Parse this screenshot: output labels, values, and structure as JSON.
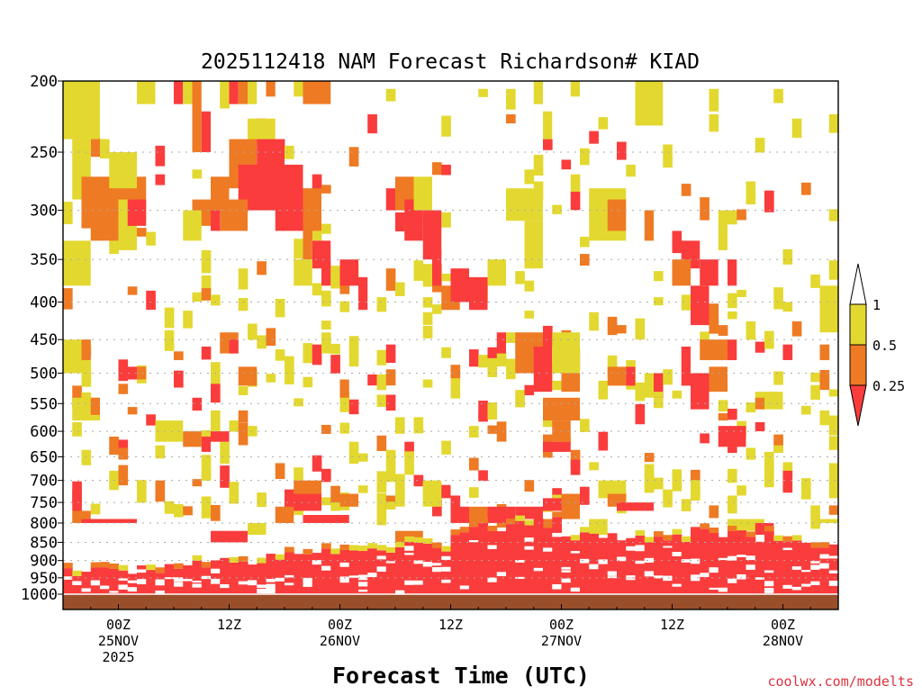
{
  "chart_data": {
    "type": "heatmap",
    "title": "2025112418 NAM Forecast Richardson# KIAD",
    "xlabel": "Forecast Time (UTC)",
    "ylabel": "",
    "credit": "coolwx.com/modelts",
    "x_range_hours": [
      -6,
      78
    ],
    "y_range_hpa": [
      200,
      1000
    ],
    "y_ticks": [
      {
        "p": 200,
        "label": "200"
      },
      {
        "p": 250,
        "label": "250"
      },
      {
        "p": 300,
        "label": "300"
      },
      {
        "p": 350,
        "label": "350"
      },
      {
        "p": 400,
        "label": "400"
      },
      {
        "p": 450,
        "label": "450"
      },
      {
        "p": 500,
        "label": "500"
      },
      {
        "p": 550,
        "label": "550"
      },
      {
        "p": 600,
        "label": "600"
      },
      {
        "p": 650,
        "label": "650"
      },
      {
        "p": 700,
        "label": "700"
      },
      {
        "p": 750,
        "label": "750"
      },
      {
        "p": 800,
        "label": "800"
      },
      {
        "p": 850,
        "label": "850"
      },
      {
        "p": 900,
        "label": "900"
      },
      {
        "p": 950,
        "label": "950"
      },
      {
        "p": 1000,
        "label": "1000"
      }
    ],
    "x_ticks": [
      {
        "h": 0,
        "lines": [
          "00Z",
          "25NOV",
          "2025"
        ]
      },
      {
        "h": 12,
        "lines": [
          "12Z"
        ]
      },
      {
        "h": 24,
        "lines": [
          "00Z",
          "26NOV"
        ]
      },
      {
        "h": 36,
        "lines": [
          "12Z"
        ]
      },
      {
        "h": 48,
        "lines": [
          "00Z",
          "27NOV"
        ]
      },
      {
        "h": 60,
        "lines": [
          "12Z"
        ]
      },
      {
        "h": 72,
        "lines": [
          "00Z",
          "28NOV"
        ]
      }
    ],
    "legend": {
      "position": "right",
      "levels": [
        {
          "label": "1",
          "color": "#ffffff"
        },
        {
          "label": "0.5",
          "color": "#e3d830"
        },
        {
          "label": "0.25",
          "color": "#ee7a24"
        },
        {
          "label": "",
          "color": "#fa3c3c"
        }
      ],
      "ticks": [
        "1",
        "0.5",
        "0.25"
      ]
    },
    "colors": {
      "low": "#fa3c3c",
      "mid": "#ee7a24",
      "high": "#e3d830",
      "ground": "#9a4f2b",
      "grid": "#aaaaaa"
    },
    "bins": [
      {
        "range": "< 0.25",
        "color": "#fa3c3c"
      },
      {
        "range": "0.25 - 0.5",
        "color": "#ee7a24"
      },
      {
        "range": "0.5 - 1",
        "color": "#e3d830"
      }
    ],
    "blobs": [
      {
        "h0": -6,
        "h1": -3,
        "p0": 330,
        "p1": 380,
        "c": 2
      },
      {
        "h0": -5,
        "h1": -3,
        "p0": 240,
        "p1": 290,
        "c": 2
      },
      {
        "h0": -4,
        "h1": 3,
        "p0": 270,
        "p1": 310,
        "c": 1
      },
      {
        "h0": -1,
        "h1": 2,
        "p0": 250,
        "p1": 280,
        "c": 2
      },
      {
        "h0": 0,
        "h1": 2,
        "p0": 290,
        "p1": 340,
        "c": 2
      },
      {
        "h0": 1,
        "h1": 3,
        "p0": 290,
        "p1": 315,
        "c": 0
      },
      {
        "h0": -3,
        "h1": 0,
        "p0": 300,
        "p1": 330,
        "c": 1
      },
      {
        "h0": -6,
        "h1": -2,
        "p0": 200,
        "p1": 240,
        "c": 2
      },
      {
        "h0": 2,
        "h1": 4,
        "p0": 200,
        "p1": 215,
        "c": 2
      },
      {
        "h0": 6,
        "h1": 7,
        "p0": 200,
        "p1": 215,
        "c": 0
      },
      {
        "h0": 7,
        "h1": 8,
        "p0": 200,
        "p1": 215,
        "c": 2
      },
      {
        "h0": 8,
        "h1": 9,
        "p0": 200,
        "p1": 250,
        "c": 1
      },
      {
        "h0": 9,
        "h1": 10,
        "p0": 220,
        "p1": 250,
        "c": 0
      },
      {
        "h0": 11,
        "h1": 12,
        "p0": 200,
        "p1": 215,
        "c": 2
      },
      {
        "h0": 12,
        "h1": 13,
        "p0": 200,
        "p1": 215,
        "c": 0
      },
      {
        "h0": 13,
        "h1": 14,
        "p0": 200,
        "p1": 215,
        "c": 1
      },
      {
        "h0": 14,
        "h1": 15,
        "p0": 200,
        "p1": 215,
        "c": 2
      },
      {
        "h0": 16,
        "h1": 17,
        "p0": 200,
        "p1": 210,
        "c": 1
      },
      {
        "h0": 19,
        "h1": 20,
        "p0": 200,
        "p1": 210,
        "c": 2
      },
      {
        "h0": 20,
        "h1": 23,
        "p0": 200,
        "p1": 215,
        "c": 1
      },
      {
        "h0": 14,
        "h1": 17,
        "p0": 225,
        "p1": 245,
        "c": 2
      },
      {
        "h0": 12,
        "h1": 15,
        "p0": 240,
        "p1": 280,
        "c": 1
      },
      {
        "h0": 13,
        "h1": 20,
        "p0": 260,
        "p1": 300,
        "c": 0
      },
      {
        "h0": 15,
        "h1": 18,
        "p0": 240,
        "p1": 265,
        "c": 0
      },
      {
        "h0": 17,
        "h1": 20,
        "p0": 290,
        "p1": 320,
        "c": 0
      },
      {
        "h0": 20,
        "h1": 22,
        "p0": 280,
        "p1": 320,
        "c": 1
      },
      {
        "h0": 10,
        "h1": 12,
        "p0": 270,
        "p1": 300,
        "c": 1
      },
      {
        "h0": 11,
        "h1": 14,
        "p0": 290,
        "p1": 320,
        "c": 1
      },
      {
        "h0": 10,
        "h1": 11,
        "p0": 300,
        "p1": 320,
        "c": 0
      },
      {
        "h0": 8,
        "h1": 10,
        "p0": 290,
        "p1": 315,
        "c": 1
      },
      {
        "h0": 7,
        "h1": 9,
        "p0": 300,
        "p1": 330,
        "c": 2
      },
      {
        "h0": 21,
        "h1": 23,
        "p0": 330,
        "p1": 360,
        "c": 0
      },
      {
        "h0": 20,
        "h1": 21,
        "p0": 320,
        "p1": 350,
        "c": 1
      },
      {
        "h0": 22,
        "h1": 23,
        "p0": 350,
        "p1": 380,
        "c": 0
      },
      {
        "h0": 19,
        "h1": 21,
        "p0": 350,
        "p1": 380,
        "c": 2
      },
      {
        "h0": 24,
        "h1": 26,
        "p0": 350,
        "p1": 380,
        "c": 0
      },
      {
        "h0": 26,
        "h1": 27,
        "p0": 370,
        "p1": 410,
        "c": 0
      },
      {
        "h0": 29,
        "h1": 30,
        "p0": 280,
        "p1": 300,
        "c": 0
      },
      {
        "h0": 30,
        "h1": 32,
        "p0": 270,
        "p1": 300,
        "c": 1
      },
      {
        "h0": 31,
        "h1": 33,
        "p0": 290,
        "p1": 330,
        "c": 0
      },
      {
        "h0": 32,
        "h1": 34,
        "p0": 270,
        "p1": 300,
        "c": 2
      },
      {
        "h0": 33,
        "h1": 35,
        "p0": 300,
        "p1": 350,
        "c": 0
      },
      {
        "h0": 34,
        "h1": 35,
        "p0": 340,
        "p1": 380,
        "c": 0
      },
      {
        "h0": 35,
        "h1": 37,
        "p0": 380,
        "p1": 410,
        "c": 1
      },
      {
        "h0": 36,
        "h1": 38,
        "p0": 360,
        "p1": 400,
        "c": 0
      },
      {
        "h0": 38,
        "h1": 40,
        "p0": 370,
        "p1": 410,
        "c": 0
      },
      {
        "h0": 40,
        "h1": 42,
        "p0": 350,
        "p1": 380,
        "c": 2
      },
      {
        "h0": 42,
        "h1": 46,
        "p0": 280,
        "p1": 310,
        "c": 2
      },
      {
        "h0": 44,
        "h1": 46,
        "p0": 310,
        "p1": 360,
        "c": 2
      },
      {
        "h0": 46,
        "h1": 47,
        "p0": 220,
        "p1": 240,
        "c": 2
      },
      {
        "h0": 45,
        "h1": 46,
        "p0": 200,
        "p1": 215,
        "c": 2
      },
      {
        "h0": 49,
        "h1": 50,
        "p0": 200,
        "p1": 210,
        "c": 2
      },
      {
        "h0": 51,
        "h1": 55,
        "p0": 280,
        "p1": 330,
        "c": 2
      },
      {
        "h0": 53,
        "h1": 55,
        "p0": 290,
        "p1": 320,
        "c": 1
      },
      {
        "h0": 57,
        "h1": 58,
        "p0": 300,
        "p1": 330,
        "c": 1
      },
      {
        "h0": 56,
        "h1": 59,
        "p0": 200,
        "p1": 230,
        "c": 2
      },
      {
        "h0": 61,
        "h1": 63,
        "p0": 330,
        "p1": 360,
        "c": 0
      },
      {
        "h0": 60,
        "h1": 62,
        "p0": 350,
        "p1": 380,
        "c": 1
      },
      {
        "h0": 63,
        "h1": 65,
        "p0": 350,
        "p1": 380,
        "c": 0
      },
      {
        "h0": 65,
        "h1": 66,
        "p0": 300,
        "p1": 340,
        "c": 2
      },
      {
        "h0": 66,
        "h1": 67,
        "p0": 350,
        "p1": 380,
        "c": 0
      },
      {
        "h0": 62,
        "h1": 64,
        "p0": 380,
        "p1": 430,
        "c": 0
      },
      {
        "h0": 76,
        "h1": 80,
        "p0": 380,
        "p1": 440,
        "c": 2
      },
      {
        "h0": -6,
        "h1": -3,
        "p0": 450,
        "p1": 500,
        "c": 2
      },
      {
        "h0": -4,
        "h1": -3,
        "p0": 450,
        "p1": 480,
        "c": 1
      },
      {
        "h0": -5,
        "h1": -2,
        "p0": 540,
        "p1": 580,
        "c": 2
      },
      {
        "h0": -3,
        "h1": -2,
        "p0": 540,
        "p1": 570,
        "c": 1
      },
      {
        "h0": 1,
        "h1": 2,
        "p0": 490,
        "p1": 510,
        "c": 0
      },
      {
        "h0": 2,
        "h1": 3,
        "p0": 490,
        "p1": 510,
        "c": 1
      },
      {
        "h0": 4,
        "h1": 7,
        "p0": 580,
        "p1": 620,
        "c": 2
      },
      {
        "h0": 7,
        "h1": 9,
        "p0": 600,
        "p1": 630,
        "c": 1
      },
      {
        "h0": 9,
        "h1": 10,
        "p0": 610,
        "p1": 640,
        "c": 0
      },
      {
        "h0": 11,
        "h1": 13,
        "p0": 440,
        "p1": 470,
        "c": 1
      },
      {
        "h0": 12,
        "h1": 13,
        "p0": 450,
        "p1": 470,
        "c": 0
      },
      {
        "h0": 13,
        "h1": 15,
        "p0": 490,
        "p1": 520,
        "c": 1
      },
      {
        "h0": 10,
        "h1": 12,
        "p0": 600,
        "p1": 620,
        "c": 0
      },
      {
        "h0": 24,
        "h1": 25,
        "p0": 510,
        "p1": 540,
        "c": 1
      },
      {
        "h0": 30,
        "h1": 31,
        "p0": 580,
        "p1": 600,
        "c": 2
      },
      {
        "h0": 41,
        "h1": 42,
        "p0": 440,
        "p1": 470,
        "c": 0
      },
      {
        "h0": 43,
        "h1": 46,
        "p0": 440,
        "p1": 500,
        "c": 1
      },
      {
        "h0": 45,
        "h1": 47,
        "p0": 460,
        "p1": 530,
        "c": 0
      },
      {
        "h0": 47,
        "h1": 50,
        "p0": 440,
        "p1": 500,
        "c": 2
      },
      {
        "h0": 48,
        "h1": 50,
        "p0": 500,
        "p1": 530,
        "c": 1
      },
      {
        "h0": 46,
        "h1": 50,
        "p0": 540,
        "p1": 580,
        "c": 1
      },
      {
        "h0": 47,
        "h1": 49,
        "p0": 580,
        "p1": 620,
        "c": 1
      },
      {
        "h0": 46,
        "h1": 49,
        "p0": 620,
        "p1": 640,
        "c": 0
      },
      {
        "h0": 53,
        "h1": 55,
        "p0": 490,
        "p1": 520,
        "c": 1
      },
      {
        "h0": 55,
        "h1": 56,
        "p0": 490,
        "p1": 520,
        "c": 0
      },
      {
        "h0": 57,
        "h1": 59,
        "p0": 500,
        "p1": 540,
        "c": 2
      },
      {
        "h0": 58,
        "h1": 59,
        "p0": 500,
        "p1": 530,
        "c": 0
      },
      {
        "h0": 61,
        "h1": 62,
        "p0": 460,
        "p1": 520,
        "c": 0
      },
      {
        "h0": 62,
        "h1": 64,
        "p0": 500,
        "p1": 560,
        "c": 0
      },
      {
        "h0": 63,
        "h1": 66,
        "p0": 450,
        "p1": 480,
        "c": 1
      },
      {
        "h0": 64,
        "h1": 66,
        "p0": 490,
        "p1": 530,
        "c": 1
      },
      {
        "h0": 66,
        "h1": 67,
        "p0": 450,
        "p1": 480,
        "c": 0
      },
      {
        "h0": 65,
        "h1": 68,
        "p0": 590,
        "p1": 630,
        "c": 0
      },
      {
        "h0": 69,
        "h1": 72,
        "p0": 530,
        "p1": 560,
        "c": 2
      },
      {
        "h0": 69,
        "h1": 70,
        "p0": 540,
        "p1": 560,
        "c": 1
      },
      {
        "h0": 52,
        "h1": 55,
        "p0": 700,
        "p1": 740,
        "c": 2
      },
      {
        "h0": 53,
        "h1": 55,
        "p0": 730,
        "p1": 760,
        "c": 1
      },
      {
        "h0": 54,
        "h1": 58,
        "p0": 750,
        "p1": 770,
        "c": 0
      },
      {
        "h0": -5,
        "h1": -3,
        "p0": 770,
        "p1": 800,
        "c": 1
      },
      {
        "h0": -4,
        "h1": 2,
        "p0": 790,
        "p1": 800,
        "c": 0
      },
      {
        "h0": 10,
        "h1": 14,
        "p0": 820,
        "p1": 850,
        "c": 0
      },
      {
        "h0": 14,
        "h1": 16,
        "p0": 800,
        "p1": 830,
        "c": 2
      },
      {
        "h0": 18,
        "h1": 22,
        "p0": 720,
        "p1": 770,
        "c": 0
      },
      {
        "h0": 19,
        "h1": 22,
        "p0": 700,
        "p1": 730,
        "c": 1
      },
      {
        "h0": 17,
        "h1": 19,
        "p0": 760,
        "p1": 800,
        "c": 1
      },
      {
        "h0": 20,
        "h1": 25,
        "p0": 780,
        "p1": 800,
        "c": 0
      },
      {
        "h0": 24,
        "h1": 26,
        "p0": 730,
        "p1": 760,
        "c": 1
      },
      {
        "h0": 30,
        "h1": 33,
        "p0": 820,
        "p1": 850,
        "c": 1
      },
      {
        "h0": 33,
        "h1": 35,
        "p0": 700,
        "p1": 760,
        "c": 2
      },
      {
        "h0": 35,
        "h1": 36,
        "p0": 710,
        "p1": 740,
        "c": 0
      },
      {
        "h0": 36,
        "h1": 38,
        "p0": 760,
        "p1": 800,
        "c": 0
      },
      {
        "h0": 38,
        "h1": 40,
        "p0": 760,
        "p1": 800,
        "c": 1
      },
      {
        "h0": 40,
        "h1": 43,
        "p0": 760,
        "p1": 800,
        "c": 0
      },
      {
        "h0": 43,
        "h1": 46,
        "p0": 760,
        "p1": 790,
        "c": 0
      },
      {
        "h0": 45,
        "h1": 48,
        "p0": 790,
        "p1": 820,
        "c": 1
      },
      {
        "h0": 48,
        "h1": 50,
        "p0": 730,
        "p1": 790,
        "c": 1
      },
      {
        "h0": 46,
        "h1": 48,
        "p0": 740,
        "p1": 770,
        "c": 0
      },
      {
        "h0": 51,
        "h1": 53,
        "p0": 790,
        "p1": 830,
        "c": 2
      },
      {
        "h0": 66,
        "h1": 70,
        "p0": 790,
        "p1": 820,
        "c": 2
      },
      {
        "h0": 69,
        "h1": 71,
        "p0": 800,
        "p1": 830,
        "c": 0
      },
      {
        "h0": 76,
        "h1": 78,
        "p0": 790,
        "p1": 800,
        "c": 2
      }
    ]
  }
}
